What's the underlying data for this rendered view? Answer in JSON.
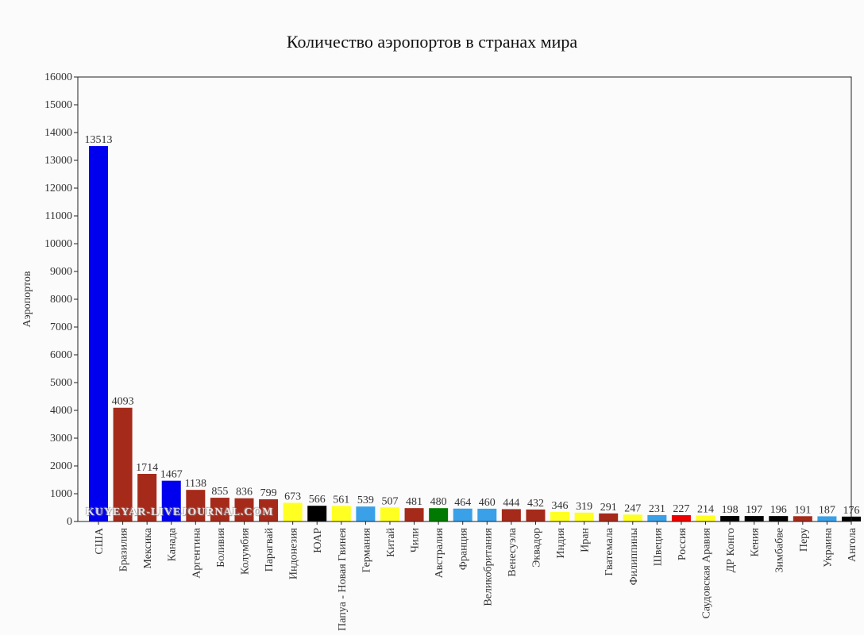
{
  "chart_data": {
    "type": "bar",
    "title": "Количество аэропортов в странах мира",
    "ylabel": "Аэропортов",
    "xlabel": "",
    "ylim": [
      0,
      16000
    ],
    "ytick_step": 1000,
    "grid": false,
    "categories": [
      "США",
      "Бразилия",
      "Мексика",
      "Канада",
      "Аргентина",
      "Боливия",
      "Колумбия",
      "Парагвай",
      "Индонезия",
      "ЮАР",
      "Папуа - Новая Гвинея",
      "Германия",
      "Китай",
      "Чили",
      "Австралия",
      "Франция",
      "Великобритания",
      "Венесуэла",
      "Эквадор",
      "Индия",
      "Иран",
      "Гватемала",
      "Филиппины",
      "Швеция",
      "Россия",
      "Саудовская Аравия",
      "ДР Конго",
      "Кения",
      "Зимбабве",
      "Перу",
      "Украина",
      "Ангола"
    ],
    "values": [
      13513,
      4093,
      1714,
      1467,
      1138,
      855,
      836,
      799,
      673,
      566,
      561,
      539,
      507,
      481,
      480,
      464,
      460,
      444,
      432,
      346,
      319,
      291,
      247,
      231,
      227,
      214,
      198,
      197,
      196,
      191,
      187,
      176
    ],
    "colors": [
      "#0000ee",
      "#a52a1a",
      "#a52a1a",
      "#0000ee",
      "#a52a1a",
      "#a52a1a",
      "#a52a1a",
      "#a52a1a",
      "#ffff22",
      "#000000",
      "#ffff22",
      "#3aa0e8",
      "#ffff22",
      "#a52a1a",
      "#007a00",
      "#3aa0e8",
      "#3aa0e8",
      "#a52a1a",
      "#a52a1a",
      "#ffff22",
      "#ffff22",
      "#a52a1a",
      "#ffff22",
      "#3aa0e8",
      "#ee0000",
      "#ffff22",
      "#000000",
      "#000000",
      "#000000",
      "#a52a1a",
      "#3aa0e8",
      "#000000"
    ]
  },
  "watermark": "KUYEYAR-LIVEJOURNAL.COM"
}
